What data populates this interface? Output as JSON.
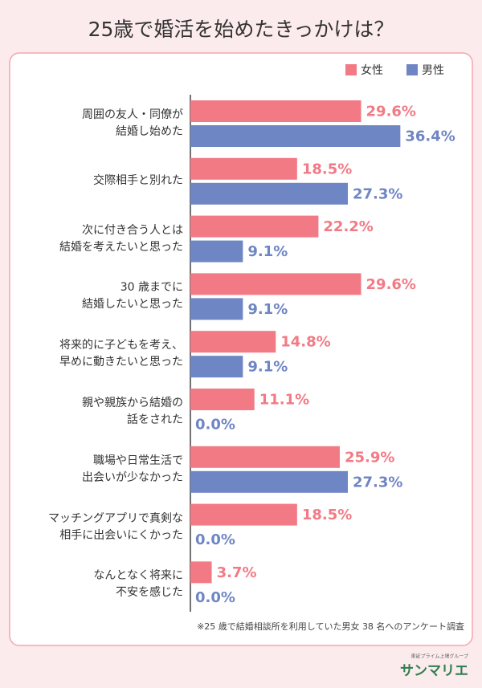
{
  "chart_data": {
    "type": "bar",
    "orientation": "horizontal",
    "title": "25歳で婚活を始めたきっかけは？",
    "categories": [
      "周囲の友人・同僚が\n結婚し始めた",
      "交際相手と別れた",
      "次に付き合う人とは\n結婚を考えたいと思った",
      "30 歳までに\n結婚したいと思った",
      "将来的に子どもを考え、\n早めに動きたいと思った",
      "親や親族から結婚の\n話をされた",
      "職場や日常生活で\n出会いが少なかった",
      "マッチングアプリで真剣な\n相手に出会いにくかった",
      "なんとなく将来に\n不安を感じた"
    ],
    "series": [
      {
        "name": "女性",
        "color": "#f27a85",
        "values": [
          29.6,
          18.5,
          22.2,
          29.6,
          14.8,
          11.1,
          25.9,
          18.5,
          3.7
        ],
        "value_labels": [
          "29.6%",
          "18.5%",
          "22.2%",
          "29.6%",
          "14.8%",
          "11.1%",
          "25.9%",
          "18.5%",
          "3.7%"
        ]
      },
      {
        "name": "男性",
        "color": "#6f86c4",
        "values": [
          36.4,
          27.3,
          9.1,
          9.1,
          9.1,
          0.0,
          27.3,
          0.0,
          0.0
        ],
        "value_labels": [
          "36.4%",
          "27.3%",
          "9.1%",
          "9.1%",
          "9.1%",
          "0.0%",
          "27.3%",
          "0.0%",
          "0.0%"
        ]
      }
    ],
    "legend": "top-right"
  },
  "footnote": "※25 歳で結婚相談所を利用していた男女 38 名へのアンケート調査",
  "logo": {
    "tagline": "東証プライム上場グループ",
    "name": "サンマリエ"
  }
}
